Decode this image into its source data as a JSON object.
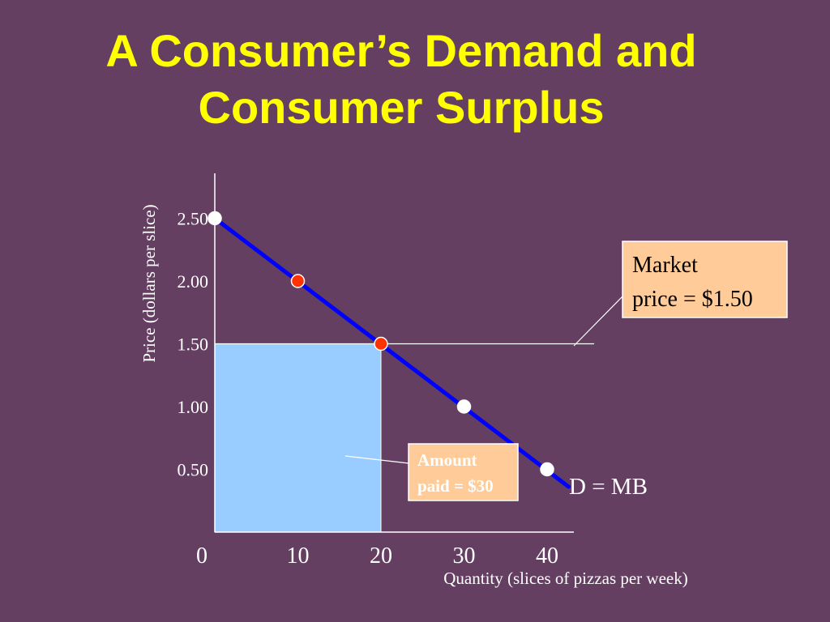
{
  "slide": {
    "title_line1": "A Consumer’s Demand and",
    "title_line2": "Consumer Surplus"
  },
  "colors": {
    "background": "#643f61",
    "title": "#ffff00",
    "demand_line": "#0000ff",
    "shaded_area": "#99ccff",
    "callout_fill": "#ffcc99",
    "highlight_point": "#ff3300",
    "plain_point": "#ffffff"
  },
  "chart_data": {
    "type": "line",
    "xlabel": "Quantity (slices of pizzas per week)",
    "ylabel": "Price (dollars per slice)",
    "x_ticks": [
      "0",
      "10",
      "20",
      "30",
      "40"
    ],
    "y_ticks": [
      "0.50",
      "1.00",
      "1.50",
      "2.00",
      "2.50"
    ],
    "xlim": [
      0,
      44
    ],
    "ylim": [
      0,
      2.8
    ],
    "series": [
      {
        "name": "D = MB",
        "points": [
          {
            "x": 0,
            "y": 2.5
          },
          {
            "x": 42,
            "y": 0.4
          }
        ]
      }
    ],
    "markers": [
      {
        "x": 0,
        "y": 2.5,
        "color": "white"
      },
      {
        "x": 10,
        "y": 2.0,
        "color": "red"
      },
      {
        "x": 20,
        "y": 1.5,
        "color": "red"
      },
      {
        "x": 30,
        "y": 1.0,
        "color": "white"
      },
      {
        "x": 40,
        "y": 0.5,
        "color": "white"
      }
    ],
    "market_price": 1.5,
    "shaded_rectangle": {
      "x0": 0,
      "x1": 20,
      "y0": 0,
      "y1": 1.5
    },
    "annotations": {
      "market_price_line1": "Market",
      "market_price_line2": "price = $1.50",
      "amount_paid_line1": "Amount",
      "amount_paid_line2": "paid = $30",
      "demand_label": "D = MB"
    }
  }
}
